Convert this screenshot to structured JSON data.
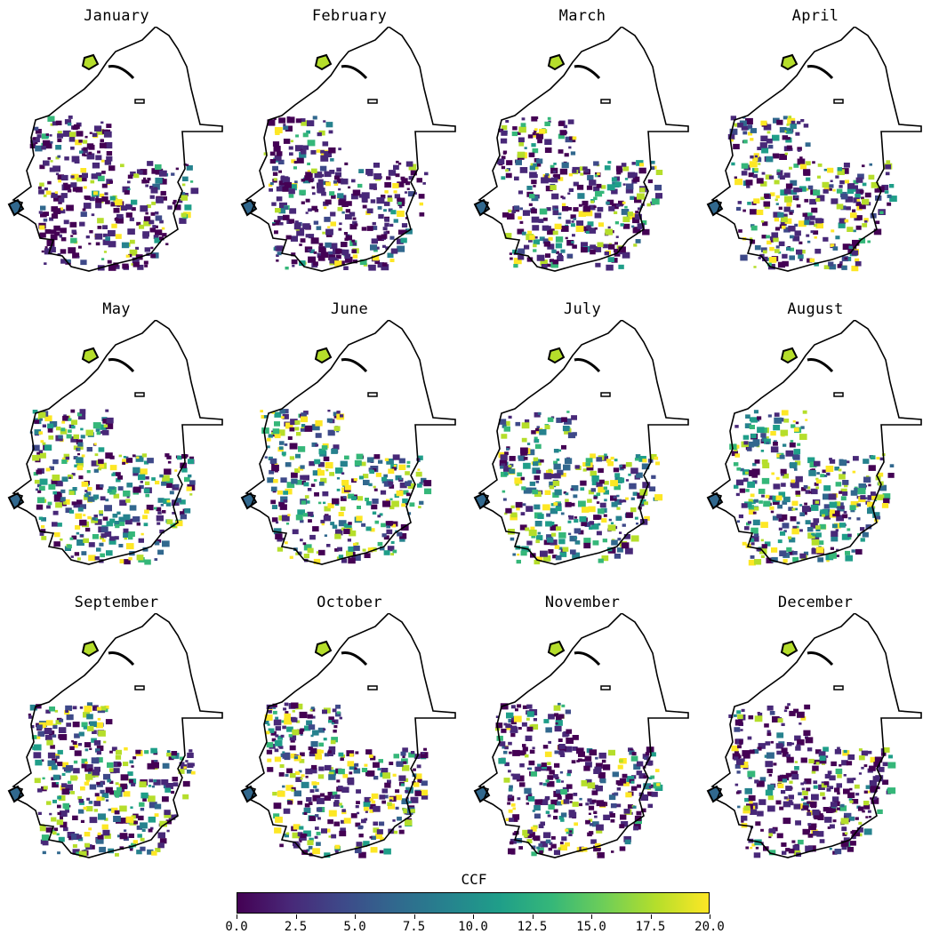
{
  "panels": [
    {
      "title": "January",
      "dark": 0.7,
      "mid": 0.15
    },
    {
      "title": "February",
      "dark": 0.68,
      "mid": 0.16
    },
    {
      "title": "March",
      "dark": 0.55,
      "mid": 0.25
    },
    {
      "title": "April",
      "dark": 0.45,
      "mid": 0.32
    },
    {
      "title": "May",
      "dark": 0.35,
      "mid": 0.4
    },
    {
      "title": "June",
      "dark": 0.28,
      "mid": 0.45
    },
    {
      "title": "July",
      "dark": 0.28,
      "mid": 0.45
    },
    {
      "title": "August",
      "dark": 0.3,
      "mid": 0.44
    },
    {
      "title": "September",
      "dark": 0.4,
      "mid": 0.35
    },
    {
      "title": "October",
      "dark": 0.5,
      "mid": 0.28
    },
    {
      "title": "November",
      "dark": 0.62,
      "mid": 0.2
    },
    {
      "title": "December",
      "dark": 0.72,
      "mid": 0.14
    }
  ],
  "colorbar": {
    "label": "CCF",
    "min": 0.0,
    "max": 20.0,
    "ticks": [
      "0.0",
      "2.5",
      "5.0",
      "7.5",
      "10.0",
      "12.5",
      "15.0",
      "17.5",
      "20.0"
    ],
    "colormap": [
      "#440154",
      "#482878",
      "#3e4989",
      "#31688e",
      "#26828e",
      "#1f9e89",
      "#35b779",
      "#6ece58",
      "#b5de2b",
      "#fde725"
    ]
  }
}
